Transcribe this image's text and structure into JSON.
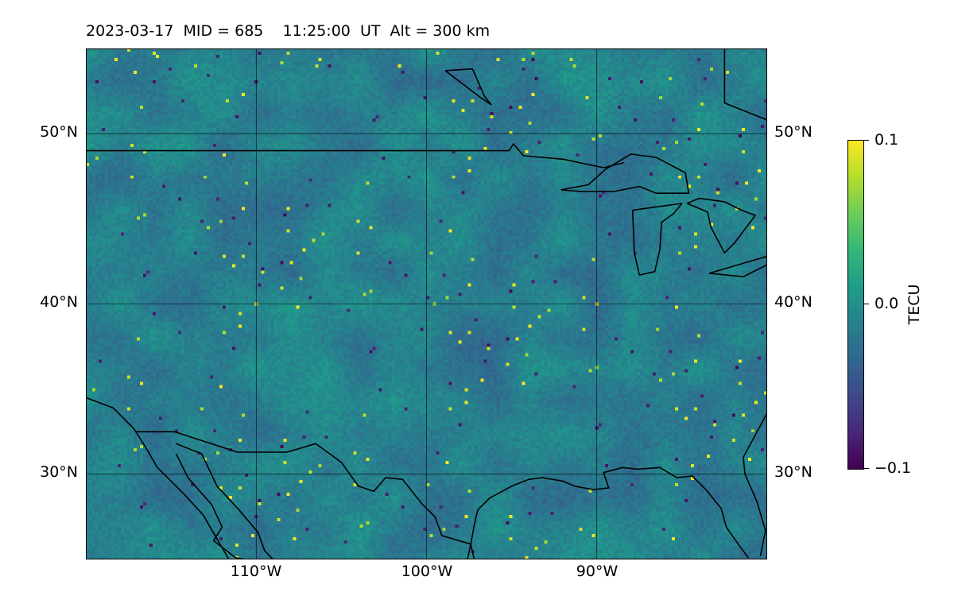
{
  "title": "2023-03-17  MID = 685    11:25:00  UT  Alt = 300 km",
  "map": {
    "lon_range": [
      -120,
      -80
    ],
    "lat_range": [
      25,
      55
    ],
    "grid_lons": [
      -110,
      -100,
      -90
    ],
    "grid_lats": [
      30,
      40,
      50
    ],
    "lat_labels": [
      "30°N",
      "40°N",
      "50°N"
    ],
    "lon_labels": [
      "110°W",
      "100°W",
      "90°W"
    ],
    "coastline_color": "#000000",
    "colormap": "viridis"
  },
  "colorbar": {
    "label": "TECU",
    "vmin": -0.1,
    "vmax": 0.1,
    "ticks": [
      0.1,
      0.0,
      -0.1
    ],
    "tick_labels": [
      "0.1",
      "0.0",
      "−0.1"
    ]
  }
}
